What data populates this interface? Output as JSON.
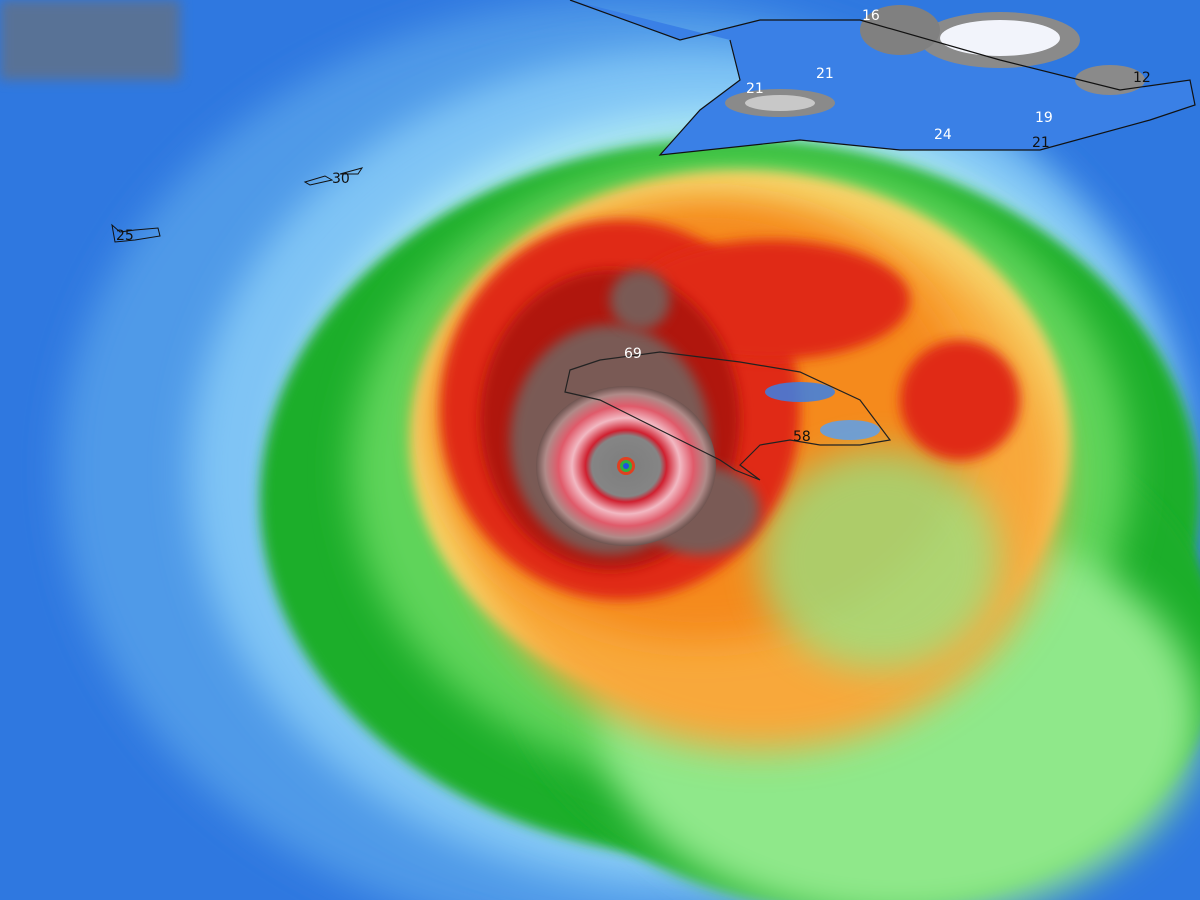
{
  "map": {
    "colors": {
      "ocean_low": "#2f78e0",
      "light_blue": "#7fc4f5",
      "cyan": "#aee8f8",
      "green": "#1fae2a",
      "light_green": "#8fe88a",
      "yellow": "#f6d46a",
      "orange": "#f58a1c",
      "red": "#e02a12",
      "dark_red": "#b0150f",
      "brown": "#7a5a55",
      "pink": "#f0b6c0",
      "gray_eye": "#808080",
      "land_gray": "#8a8a8a",
      "white": "#f2f4fb"
    },
    "labels": [
      {
        "text": "16",
        "color": "white"
      },
      {
        "text": "21",
        "color": "white"
      },
      {
        "text": "21",
        "color": "white"
      },
      {
        "text": "24",
        "color": "white"
      },
      {
        "text": "19",
        "color": "white"
      },
      {
        "text": "12",
        "color": "black"
      },
      {
        "text": "21",
        "color": "black"
      },
      {
        "text": "30",
        "color": "black"
      },
      {
        "text": "25",
        "color": "black"
      },
      {
        "text": "69",
        "color": "white"
      },
      {
        "text": "58",
        "color": "black"
      }
    ]
  }
}
